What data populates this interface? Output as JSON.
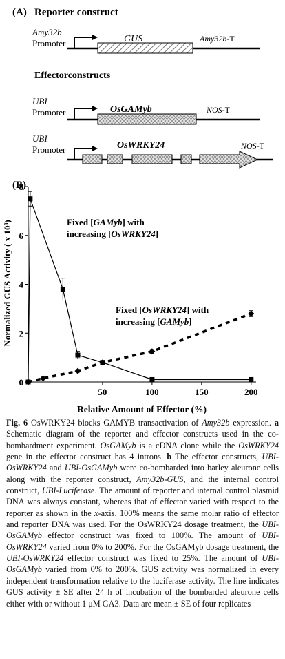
{
  "panel_a": {
    "label": "(A)",
    "title": "Reporter construct",
    "reporter": {
      "promoter": "Amy32b",
      "promoter_word": "Promoter",
      "gene": "GUS",
      "terminator_name": "Amy32b",
      "terminator_suffix": "-T"
    },
    "effector_title": "Effectorconstructs",
    "effectors": [
      {
        "promoter": "UBI",
        "promoter_word": "Promoter",
        "gene": "OsGAMyb",
        "terminator_name": "NOS",
        "terminator_suffix": "-T"
      },
      {
        "promoter": "UBI",
        "promoter_word": "Promoter",
        "gene": "OsWRKY24",
        "terminator_name": "NOS",
        "terminator_suffix": "-T"
      }
    ]
  },
  "chart_data": {
    "type": "line",
    "label": "(B)",
    "xlabel": "Relative Amount of Effector (%)",
    "ylabel": "Normalized GUS Activity ( x 10³)",
    "xlim": [
      -25,
      205
    ],
    "xticks": [
      50,
      100,
      150,
      200
    ],
    "ylim": [
      0,
      8
    ],
    "yticks": [
      0,
      2,
      4,
      6,
      8
    ],
    "series": [
      {
        "name": "Fixed [GAMyb] with increasing [OsWRKY24]",
        "color": "#000000",
        "marker": "square",
        "dashed": false,
        "x": [
          -25,
          -23,
          10,
          25,
          50,
          100,
          200
        ],
        "values": [
          0,
          7.5,
          3.8,
          1.1,
          0.8,
          0.1,
          0.1
        ],
        "errors": [
          0,
          0.3,
          0.45,
          0.15,
          0.08,
          0.05,
          0.05
        ]
      },
      {
        "name": "Fixed [OsWRKY24] with increasing [GAMyb]",
        "color": "#000000",
        "marker": "diamond",
        "dashed": true,
        "x": [
          -25,
          -10,
          25,
          50,
          100,
          200
        ],
        "values": [
          0,
          0.15,
          0.45,
          0.8,
          1.25,
          2.8
        ],
        "errors": [
          0,
          0.05,
          0.05,
          0.05,
          0.08,
          0.12
        ]
      }
    ],
    "annotations": [
      {
        "lines": [
          [
            {
              "text": "Fixed ["
            },
            {
              "text": "GAMyb",
              "italic": true
            },
            {
              "text": "] with"
            }
          ],
          [
            {
              "text": "increasing ["
            },
            {
              "text": "OsWRKY24",
              "italic": true
            },
            {
              "text": "]"
            }
          ]
        ]
      },
      {
        "lines": [
          [
            {
              "text": "Fixed ["
            },
            {
              "text": "OsWRKY24",
              "italic": true
            },
            {
              "text": "] with"
            }
          ],
          [
            {
              "text": "increasing ["
            },
            {
              "text": "GAMyb",
              "italic": true
            },
            {
              "text": "]"
            }
          ]
        ]
      }
    ]
  },
  "caption": [
    {
      "text": "Fig. 6",
      "bold": true
    },
    {
      "text": " OsWRKY24 blocks GAMYB transactivation of "
    },
    {
      "text": "Amy32b",
      "italic": true
    },
    {
      "text": " expression. "
    },
    {
      "text": "a",
      "bold": true
    },
    {
      "text": " Schematic diagram of the reporter and effector constructs used in the co-bombardment experiment. "
    },
    {
      "text": "OsGAMyb",
      "italic": true
    },
    {
      "text": " is a cDNA clone while the "
    },
    {
      "text": "OsWRKY24",
      "italic": true
    },
    {
      "text": " gene in the effector construct has 4 introns. "
    },
    {
      "text": "b",
      "bold": true
    },
    {
      "text": " The effector constructs, "
    },
    {
      "text": "UBI-OsWRKY24",
      "italic": true
    },
    {
      "text": " and "
    },
    {
      "text": "UBI-OsGAMyb",
      "italic": true
    },
    {
      "text": " were co-bombarded into barley aleurone cells along with the reporter construct, "
    },
    {
      "text": "Amy32b-GUS",
      "italic": true
    },
    {
      "text": ", and the internal control construct, "
    },
    {
      "text": "UBI-Luciferase",
      "italic": true
    },
    {
      "text": ". The amount of reporter and internal control plasmid DNA was always constant, whereas that of effector varied with respect to the reporter as shown in the "
    },
    {
      "text": "x",
      "italic": true
    },
    {
      "text": "-axis. 100% means the same molar ratio of effector and reporter DNA was used. For the OsWRKY24 dosage treatment, the "
    },
    {
      "text": "UBI-OsGAMyb",
      "italic": true
    },
    {
      "text": " effector construct was fixed to 100%. The amount of "
    },
    {
      "text": "UBI-OsWRKY24",
      "italic": true
    },
    {
      "text": " varied from 0% to 200%. For the OsGAMyb dosage treatment, the "
    },
    {
      "text": "UBI-OsWRKY24",
      "italic": true
    },
    {
      "text": " effector construct was fixed to 25%. The amount of "
    },
    {
      "text": "UBI-OsGAMyb",
      "italic": true
    },
    {
      "text": " varied from 0% to 200%. GUS activity was normalized in every independent transformation relative to the luciferase activity. The line indicates GUS activity ± SE after 24 h of incubation of the bombarded aleurone cells either with or without 1 μM GA3. Data are mean ± SE of four replicates"
    }
  ]
}
